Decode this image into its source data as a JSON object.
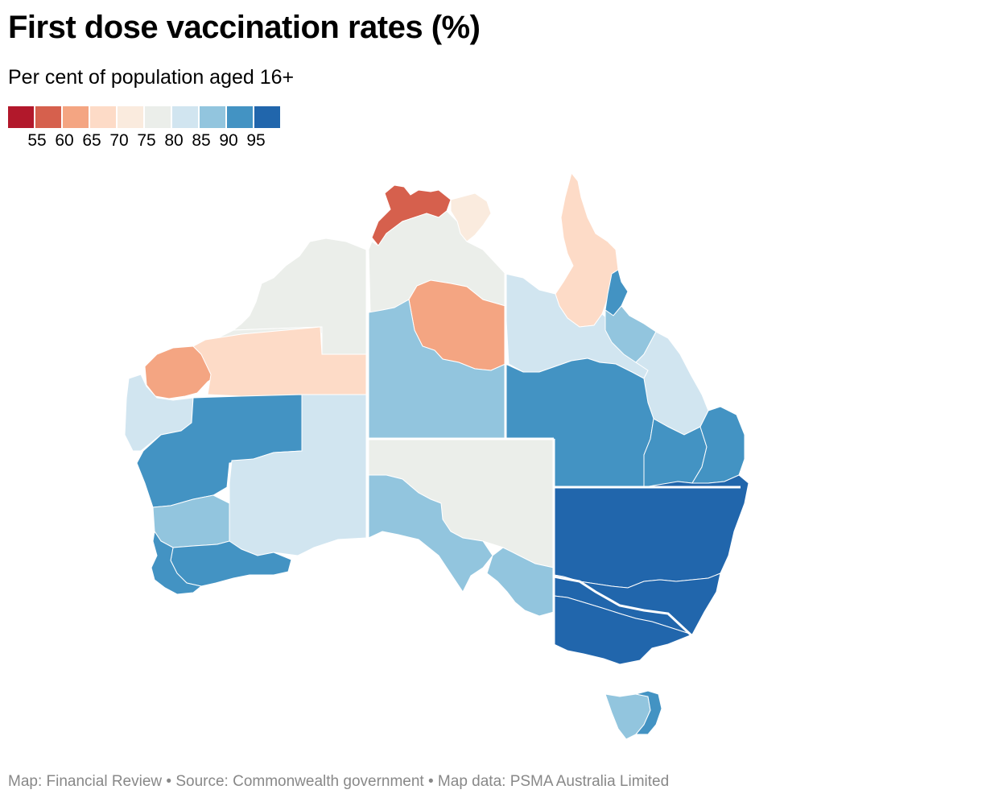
{
  "title": "First dose vaccination rates (%)",
  "subtitle": "Per cent of population aged 16+",
  "legend": {
    "colors": [
      "#b2182b",
      "#d6604d",
      "#f4a582",
      "#fddbc7",
      "#faebde",
      "#ebeeea",
      "#d1e5f0",
      "#92c5de",
      "#4393c3",
      "#2166ac"
    ],
    "ticks": [
      "55",
      "60",
      "65",
      "70",
      "75",
      "80",
      "85",
      "90",
      "95"
    ]
  },
  "map": {
    "regions": [
      {
        "name": "wa-pilbara-north",
        "band": "75-80"
      },
      {
        "name": "wa-kimberley-west",
        "band": "75-80"
      },
      {
        "name": "wa-pilbara-coast",
        "band": "60-65"
      },
      {
        "name": "wa-pilbara-east",
        "band": "65-70"
      },
      {
        "name": "wa-gascoyne",
        "band": "80-85"
      },
      {
        "name": "wa-midwest",
        "band": "90-95"
      },
      {
        "name": "wa-goldfields",
        "band": "80-85"
      },
      {
        "name": "wa-wheatbelt",
        "band": "85-90"
      },
      {
        "name": "wa-south-coast",
        "band": "90-95"
      },
      {
        "name": "wa-southwest",
        "band": "90-95"
      },
      {
        "name": "nt-top-end-west",
        "band": "55-60"
      },
      {
        "name": "nt-arnhem",
        "band": "70-75"
      },
      {
        "name": "nt-top-end",
        "band": "75-80"
      },
      {
        "name": "nt-barkly",
        "band": "60-65"
      },
      {
        "name": "nt-central",
        "band": "85-90"
      },
      {
        "name": "qld-cape-york",
        "band": "65-70"
      },
      {
        "name": "qld-gulf",
        "band": "80-85"
      },
      {
        "name": "qld-cairns",
        "band": "90-95"
      },
      {
        "name": "qld-townsville",
        "band": "85-90"
      },
      {
        "name": "qld-central-west",
        "band": "80-85"
      },
      {
        "name": "qld-south-west",
        "band": "90-95"
      },
      {
        "name": "qld-darling-downs",
        "band": "90-95"
      },
      {
        "name": "qld-south-east",
        "band": "90-95"
      },
      {
        "name": "sa-outback",
        "band": "75-80"
      },
      {
        "name": "sa-eyre",
        "band": "85-90"
      },
      {
        "name": "sa-adelaide",
        "band": "85-90"
      },
      {
        "name": "nsw-far-west",
        "band": "95+"
      },
      {
        "name": "nsw-east",
        "band": "95+"
      },
      {
        "name": "vic",
        "band": "95+"
      },
      {
        "name": "tas",
        "band": "85-90"
      },
      {
        "name": "tas-east",
        "band": "90-95"
      }
    ]
  },
  "footer": "Map: Financial Review • Source: Commonwealth government • Map data: PSMA Australia Limited"
}
